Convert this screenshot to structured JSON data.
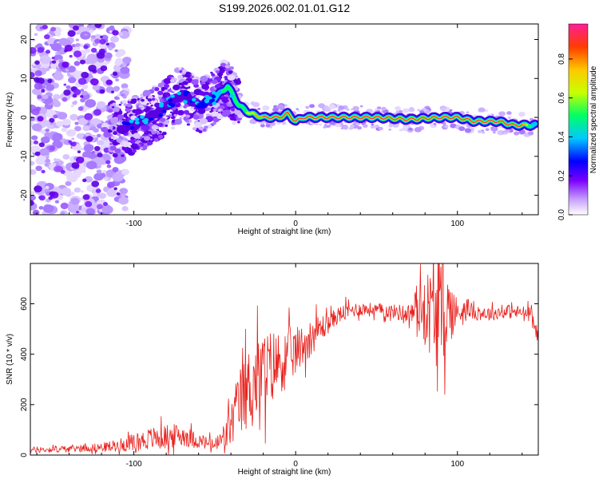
{
  "title": "S199.2026.002.01.01.G12",
  "chart_data": [
    {
      "type": "heatmap",
      "xlabel": "Height of straight line (km)",
      "ylabel": "Frequency (Hz)",
      "xlim": [
        -164,
        150
      ],
      "ylim": [
        -25,
        24
      ],
      "x_ticks": [
        -100,
        0,
        100
      ],
      "x_tick_labels": [
        "-100",
        "0",
        "100"
      ],
      "y_ticks": [
        -20,
        -10,
        0,
        10,
        20
      ],
      "y_tick_labels": [
        "-20",
        "-10",
        "0",
        "10",
        "20"
      ],
      "colorbar": {
        "label": "Normalized spectral amplitude",
        "range": [
          0,
          0.98
        ],
        "ticks": [
          0,
          0.2,
          0.4,
          0.6,
          0.8
        ],
        "tick_labels": [
          "0.0",
          "0.2",
          "0.4",
          "0.6",
          "0.8"
        ],
        "colors": [
          "#ffffff",
          "#b46eff",
          "#7a00ff",
          "#0000ff",
          "#00c8ff",
          "#00ff64",
          "#c8ff00",
          "#ffc800",
          "#ff3c00",
          "#ff1e96"
        ]
      },
      "ridge": {
        "x": [
          -108,
          -100,
          -90,
          -80,
          -70,
          -60,
          -50,
          -42,
          -35,
          -28,
          -20,
          -10,
          -5,
          0,
          5,
          15,
          30,
          50,
          70,
          90,
          100,
          110,
          125,
          135,
          148
        ],
        "y": [
          -3,
          -2,
          0,
          3,
          6,
          3,
          5,
          8,
          3,
          1,
          0,
          0,
          1,
          -1,
          0,
          0,
          0,
          0,
          -0.5,
          0,
          0,
          -1,
          -1,
          -2,
          -2
        ]
      }
    },
    {
      "type": "line",
      "xlabel": "Height of straight line (km)",
      "ylabel": "SNR (10 * v/v)",
      "xlim": [
        -164,
        150
      ],
      "ylim": [
        0,
        760
      ],
      "x_ticks": [
        -100,
        0,
        100
      ],
      "x_tick_labels": [
        "-100",
        "0",
        "100"
      ],
      "y_ticks": [
        0,
        200,
        400,
        600
      ],
      "y_tick_labels": [
        "0",
        "200",
        "400",
        "600"
      ],
      "series": [
        {
          "name": "SNR",
          "color": "#e8201c",
          "x": [
            -164,
            -150,
            -140,
            -130,
            -120,
            -110,
            -100,
            -90,
            -80,
            -70,
            -60,
            -50,
            -45,
            -40,
            -35,
            -30,
            -25,
            -20,
            -15,
            -10,
            -5,
            0,
            5,
            10,
            15,
            20,
            25,
            30,
            35,
            40,
            50,
            60,
            70,
            75,
            80,
            85,
            90,
            95,
            100,
            105,
            110,
            120,
            130,
            140,
            145,
            150
          ],
          "values": [
            20,
            22,
            25,
            28,
            30,
            38,
            50,
            65,
            72,
            80,
            55,
            40,
            60,
            120,
            200,
            260,
            300,
            320,
            350,
            370,
            390,
            410,
            440,
            470,
            500,
            520,
            550,
            565,
            575,
            580,
            575,
            570,
            560,
            580,
            585,
            560,
            550,
            580,
            560,
            590,
            565,
            560,
            570,
            565,
            560,
            470
          ],
          "noise_amplitude": [
            12,
            12,
            14,
            15,
            18,
            25,
            35,
            45,
            50,
            45,
            30,
            25,
            60,
            90,
            140,
            160,
            170,
            170,
            150,
            130,
            110,
            100,
            80,
            70,
            60,
            40,
            35,
            35,
            30,
            28,
            28,
            28,
            40,
            80,
            140,
            200,
            220,
            140,
            60,
            40,
            30,
            28,
            28,
            28,
            30,
            30
          ]
        }
      ]
    }
  ]
}
